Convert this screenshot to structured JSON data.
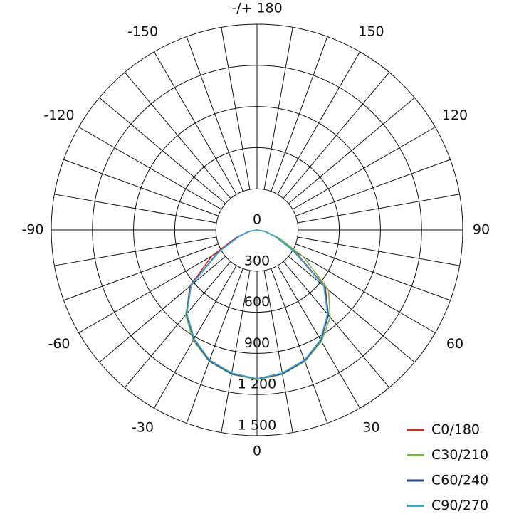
{
  "chart_data": {
    "type": "polar",
    "x": [
      -90,
      -80,
      -70,
      -60,
      -50,
      -40,
      -30,
      -20,
      -10,
      0,
      10,
      20,
      30,
      40,
      50,
      60,
      70,
      80,
      90
    ],
    "series": [
      {
        "name": "C0/180",
        "color": "#c8312a",
        "values": [
          0,
          60,
          160,
          380,
          640,
          800,
          920,
          1010,
          1060,
          1085,
          1060,
          1010,
          930,
          810,
          650,
          330,
          150,
          60,
          0
        ]
      },
      {
        "name": "C30/210",
        "color": "#7ab648",
        "values": [
          0,
          55,
          140,
          330,
          630,
          810,
          930,
          1020,
          1070,
          1090,
          1070,
          1020,
          940,
          830,
          680,
          390,
          170,
          60,
          0
        ]
      },
      {
        "name": "C60/240",
        "color": "#2d3f8e",
        "values": [
          0,
          55,
          140,
          330,
          630,
          800,
          920,
          1015,
          1065,
          1085,
          1065,
          1015,
          930,
          810,
          640,
          310,
          140,
          55,
          0
        ]
      },
      {
        "name": "C90/270",
        "color": "#3aa9d9",
        "values": [
          0,
          55,
          140,
          320,
          625,
          795,
          915,
          1010,
          1060,
          1085,
          1060,
          1010,
          925,
          800,
          635,
          320,
          140,
          55,
          0
        ]
      }
    ],
    "rlim": [
      0,
      1500
    ],
    "rticks": [
      0,
      300,
      600,
      900,
      {
        "value": 1200,
        "label": "1 200"
      },
      {
        "value": 1500,
        "label": "1 500"
      }
    ],
    "angle_ticks": [
      0,
      30,
      60,
      90,
      120,
      150,
      {
        "value": 180,
        "label": "-/+ 180"
      },
      -150,
      -120,
      -90,
      -60,
      -30
    ],
    "angle_gridlines": [
      -170,
      -160,
      -150,
      -140,
      -130,
      -120,
      -110,
      -100,
      -90,
      -80,
      -70,
      -60,
      -50,
      -40,
      -30,
      -20,
      -10,
      0,
      10,
      20,
      30,
      40,
      50,
      60,
      70,
      80,
      90,
      100,
      110,
      120,
      130,
      140,
      150,
      160,
      170,
      180
    ]
  }
}
